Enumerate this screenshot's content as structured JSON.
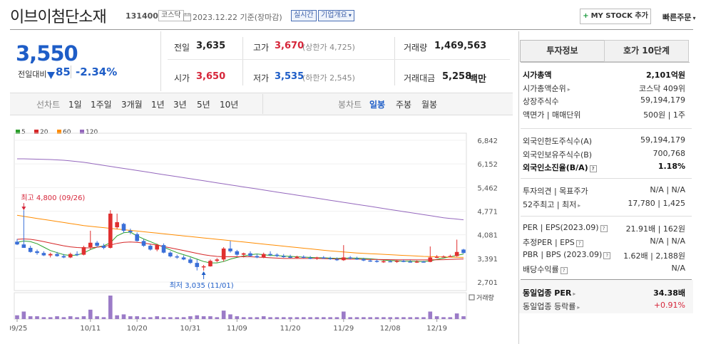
{
  "header": {
    "company_name": "이브이첨단소재",
    "code": "131400",
    "market_badge": "코스닥",
    "date_text": "2023.12.22  기준(장마감)",
    "realtime_badge": "실시간",
    "company_overview_label": "기업개요",
    "mystock_label": "MY STOCK 추가",
    "quick_order_label": "빠른주문"
  },
  "price": {
    "current": "3,550",
    "prev_label": "전일대비",
    "change": "85",
    "change_pct": "-2.34%"
  },
  "quote": {
    "prev_close_label": "전일",
    "prev_close": "3,635",
    "high_label": "고가",
    "high": "3,670",
    "upper_limit": "(상한가 4,725)",
    "volume_label": "거래량",
    "volume": "1,469,563",
    "open_label": "시가",
    "open": "3,650",
    "low_label": "저가",
    "low": "3,535",
    "lower_limit": "(하한가 2,545)",
    "amount_label": "거래대금",
    "amount": "5,258",
    "amount_unit": "백만"
  },
  "toolbar": {
    "line_chart": "선차트",
    "periods": [
      "1일",
      "1주일",
      "3개월",
      "1년",
      "3년",
      "5년",
      "10년"
    ],
    "candle_chart": "봉차트",
    "candle_periods": [
      "일봉",
      "주봉",
      "월봉"
    ]
  },
  "chart_data": {
    "type": "candlestick",
    "legend": [
      {
        "name": "5",
        "color": "#2ca02c"
      },
      {
        "name": "20",
        "color": "#d62728"
      },
      {
        "name": "60",
        "color": "#ff8c00"
      },
      {
        "name": "120",
        "color": "#9467bd"
      }
    ],
    "y_ticks": [
      "6,842",
      "6,152",
      "5,462",
      "4,771",
      "4,081",
      "3,391",
      "2,701"
    ],
    "ylim": [
      2701,
      6842
    ],
    "x_ticks": [
      "09/25",
      "10/11",
      "10/20",
      "10/31",
      "11/09",
      "11/20",
      "11/29",
      "12/08",
      "12/19"
    ],
    "high_annotation": "최고 4,800 (09/26)",
    "low_annotation": "최저 3,035 (11/01)",
    "volume_label": "거래량",
    "up_color": "#e03030",
    "down_color": "#3a6fd8",
    "candles": [
      [
        3880,
        3960,
        3780,
        3800
      ],
      [
        3800,
        4800,
        3700,
        3700
      ],
      [
        3700,
        3760,
        3560,
        3580
      ],
      [
        3600,
        3650,
        3500,
        3550
      ],
      [
        3550,
        3600,
        3460,
        3480
      ],
      [
        3480,
        3560,
        3420,
        3520
      ],
      [
        3520,
        3580,
        3440,
        3460
      ],
      [
        3460,
        3520,
        3400,
        3420
      ],
      [
        3420,
        3560,
        3400,
        3520
      ],
      [
        3520,
        3600,
        3460,
        3500
      ],
      [
        3500,
        3760,
        3480,
        3720
      ],
      [
        3720,
        4200,
        3650,
        3850
      ],
      [
        3850,
        3900,
        3720,
        3760
      ],
      [
        3760,
        3820,
        3660,
        3700
      ],
      [
        3700,
        4800,
        3680,
        4700
      ],
      [
        4300,
        4700,
        4250,
        4450
      ],
      [
        4400,
        4430,
        4140,
        4200
      ],
      [
        4200,
        4260,
        4100,
        4160
      ],
      [
        4100,
        4150,
        3880,
        3900
      ],
      [
        3900,
        3960,
        3730,
        3760
      ],
      [
        3760,
        3800,
        3620,
        3650
      ],
      [
        3650,
        3820,
        3600,
        3780
      ],
      [
        3780,
        3830,
        3540,
        3560
      ],
      [
        3560,
        3600,
        3420,
        3450
      ],
      [
        3450,
        3500,
        3380,
        3420
      ],
      [
        3420,
        3480,
        3340,
        3360
      ],
      [
        3360,
        3420,
        3230,
        3260
      ],
      [
        3260,
        3360,
        3040,
        3140
      ],
      [
        3140,
        3200,
        3035,
        3160
      ],
      [
        3160,
        3360,
        3150,
        3320
      ],
      [
        3320,
        3400,
        3280,
        3360
      ],
      [
        3360,
        3720,
        3300,
        3680
      ],
      [
        3680,
        3900,
        3560,
        3600
      ],
      [
        3600,
        3640,
        3460,
        3500
      ],
      [
        3500,
        3560,
        3420,
        3540
      ],
      [
        3540,
        3600,
        3440,
        3460
      ],
      [
        3460,
        3520,
        3400,
        3420
      ],
      [
        3420,
        3560,
        3400,
        3520
      ],
      [
        3520,
        3600,
        3460,
        3500
      ],
      [
        3500,
        3540,
        3430,
        3460
      ],
      [
        3460,
        3520,
        3410,
        3440
      ],
      [
        3440,
        3500,
        3400,
        3420
      ],
      [
        3420,
        3470,
        3380,
        3440
      ],
      [
        3440,
        3480,
        3400,
        3410
      ],
      [
        3410,
        3460,
        3370,
        3390
      ],
      [
        3390,
        3440,
        3350,
        3420
      ],
      [
        3420,
        3460,
        3380,
        3400
      ],
      [
        3400,
        3440,
        3350,
        3370
      ],
      [
        3370,
        3420,
        3320,
        3340
      ],
      [
        3340,
        3780,
        3320,
        3420
      ],
      [
        3420,
        3460,
        3370,
        3390
      ],
      [
        3390,
        3440,
        3350,
        3370
      ],
      [
        3370,
        3410,
        3310,
        3330
      ],
      [
        3330,
        3380,
        3290,
        3320
      ],
      [
        3320,
        3360,
        3270,
        3300
      ],
      [
        3300,
        3340,
        3260,
        3310
      ],
      [
        3310,
        3350,
        3280,
        3290
      ],
      [
        3290,
        3340,
        3260,
        3320
      ],
      [
        3320,
        3360,
        3280,
        3300
      ],
      [
        3300,
        3350,
        3270,
        3290
      ],
      [
        3290,
        3330,
        3260,
        3300
      ],
      [
        3300,
        3320,
        3270,
        3290
      ],
      [
        3290,
        3740,
        3280,
        3420
      ],
      [
        3420,
        3490,
        3400,
        3440
      ],
      [
        3440,
        3480,
        3420,
        3450
      ],
      [
        3450,
        3500,
        3430,
        3460
      ],
      [
        3460,
        3940,
        3440,
        3580
      ],
      [
        3650,
        3670,
        3535,
        3550
      ]
    ],
    "ma_values": {
      "ma5": [
        3860,
        3900,
        3880,
        3820,
        3720,
        3620,
        3560,
        3500,
        3480,
        3490,
        3550,
        3650,
        3720,
        3760,
        3850,
        4050,
        4140,
        4160,
        4050,
        3960,
        3880,
        3800,
        3720,
        3640,
        3560,
        3500,
        3440,
        3370,
        3300,
        3260,
        3260,
        3300,
        3370,
        3420,
        3460,
        3500,
        3520,
        3500,
        3480,
        3470,
        3460,
        3450,
        3440,
        3430,
        3420,
        3410,
        3410,
        3400,
        3390,
        3400,
        3400,
        3400,
        3390,
        3380,
        3360,
        3340,
        3330,
        3320,
        3310,
        3310,
        3305,
        3300,
        3320,
        3360,
        3400,
        3440,
        3480,
        3520
      ],
      "ma20": [
        3950,
        3960,
        3950,
        3920,
        3880,
        3840,
        3800,
        3760,
        3730,
        3710,
        3700,
        3700,
        3720,
        3740,
        3780,
        3830,
        3860,
        3870,
        3860,
        3840,
        3810,
        3780,
        3740,
        3700,
        3660,
        3620,
        3580,
        3540,
        3500,
        3470,
        3450,
        3440,
        3440,
        3440,
        3440,
        3440,
        3430,
        3420,
        3410,
        3400,
        3390,
        3390,
        3390,
        3390,
        3390,
        3390,
        3385,
        3380,
        3375,
        3372,
        3370,
        3368,
        3365,
        3360,
        3358,
        3356,
        3354,
        3352,
        3350,
        3350,
        3348,
        3348,
        3350,
        3352,
        3355,
        3360,
        3368,
        3375
      ],
      "ma60": [
        4650,
        4620,
        4590,
        4560,
        4530,
        4500,
        4470,
        4440,
        4410,
        4380,
        4350,
        4330,
        4310,
        4290,
        4270,
        4250,
        4230,
        4210,
        4190,
        4170,
        4150,
        4130,
        4110,
        4090,
        4070,
        4050,
        4030,
        4010,
        3990,
        3970,
        3950,
        3930,
        3910,
        3890,
        3870,
        3850,
        3830,
        3810,
        3790,
        3770,
        3750,
        3730,
        3710,
        3690,
        3670,
        3650,
        3630,
        3610,
        3595,
        3580,
        3565,
        3550,
        3540,
        3530,
        3520,
        3510,
        3500,
        3490,
        3480,
        3470,
        3460,
        3450,
        3445,
        3440,
        3435,
        3430,
        3425,
        3420
      ],
      "ma120": [
        6300,
        6300,
        6295,
        6290,
        6285,
        6280,
        6270,
        6260,
        6240,
        6220,
        6200,
        6170,
        6140,
        6110,
        6080,
        6050,
        6020,
        5990,
        5960,
        5930,
        5900,
        5870,
        5840,
        5810,
        5780,
        5750,
        5720,
        5690,
        5660,
        5630,
        5600,
        5570,
        5540,
        5510,
        5480,
        5450,
        5420,
        5390,
        5360,
        5330,
        5300,
        5270,
        5240,
        5210,
        5180,
        5150,
        5120,
        5090,
        5060,
        5030,
        5000,
        4970,
        4940,
        4910,
        4880,
        4850,
        4820,
        4790,
        4760,
        4730,
        4700,
        4670,
        4640,
        4610,
        4580,
        4560,
        4540,
        4520
      ]
    },
    "volumes": [
      4,
      8,
      3,
      3,
      2,
      2,
      3,
      2,
      3,
      2,
      3,
      10,
      3,
      2,
      25,
      4,
      5,
      3,
      3,
      2,
      2,
      3,
      2,
      2,
      2,
      2,
      3,
      4,
      3,
      3,
      2,
      9,
      5,
      3,
      2,
      2,
      2,
      3,
      2,
      2,
      2,
      2,
      2,
      2,
      2,
      2,
      2,
      2,
      2,
      8,
      2,
      2,
      2,
      2,
      2,
      2,
      2,
      2,
      2,
      2,
      2,
      2,
      8,
      3,
      2,
      2,
      6,
      3
    ]
  },
  "right_panel": {
    "tabs": [
      "투자정보",
      "호가 10단계"
    ],
    "rows1": [
      {
        "label": "시가총액",
        "value": "2,101억원",
        "bold": true
      },
      {
        "label": "시가총액순위",
        "value": "코스닥 409위"
      },
      {
        "label": "상장주식수",
        "value": "59,194,179"
      },
      {
        "label": "액면가 | 매매단위",
        "value": "500원 | 1주"
      }
    ],
    "rows2": [
      {
        "label": "외국인한도주식수(A)",
        "value": "59,194,179"
      },
      {
        "label": "외국인보유주식수(B)",
        "value": "700,768"
      },
      {
        "label": "외국인소진율(B/A)",
        "value": "1.18%",
        "bold": true
      }
    ],
    "rows3": [
      {
        "label": "투자의견 | 목표주가",
        "value": "N/A | N/A"
      },
      {
        "label": "52주최고 | 최저",
        "value": "17,780 | 1,425"
      }
    ],
    "rows4": [
      {
        "label": "PER | EPS(2023.09)",
        "value": "21.91배 | 162원"
      },
      {
        "label": "추정PER | EPS",
        "value": "N/A | N/A"
      },
      {
        "label": "PBR | BPS (2023.09)",
        "value": "1.62배 | 2,188원"
      },
      {
        "label": "배당수익률",
        "value": "N/A"
      }
    ],
    "rows5": [
      {
        "label": "동일업종 PER",
        "value": "34.38배",
        "bold": true
      },
      {
        "label": "동일업종 등락률",
        "value": "+0.91%",
        "red": true
      }
    ]
  }
}
